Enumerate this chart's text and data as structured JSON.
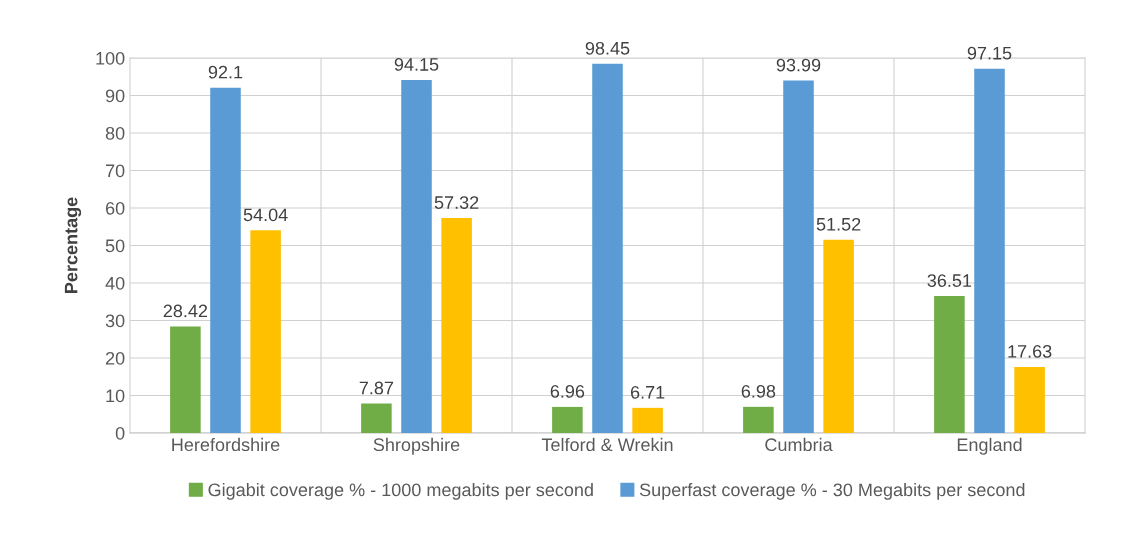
{
  "chart_data": {
    "type": "bar",
    "ylabel": "Percentage",
    "categories": [
      "Herefordshire",
      "Shropshire",
      "Telford & Wrekin",
      "Cumbria",
      "England"
    ],
    "series": [
      {
        "name": "Gigabit coverage % - 1000 megabits per second",
        "color": "#70ad47",
        "values": [
          28.42,
          7.87,
          6.96,
          6.98,
          36.51
        ]
      },
      {
        "name": "Superfast coverage % - 30 Megabits per second",
        "color": "#5b9bd5",
        "values": [
          92.1,
          94.15,
          98.45,
          93.99,
          97.15
        ]
      },
      {
        "color": "#ffc000",
        "values": [
          54.04,
          57.32,
          6.71,
          51.52,
          17.63
        ]
      }
    ],
    "ylim": [
      0,
      100
    ],
    "yticks": [
      0,
      10,
      20,
      30,
      40,
      50,
      60,
      70,
      80,
      90,
      100
    ],
    "grid": true,
    "legend": "bottom",
    "data_labels": true
  }
}
